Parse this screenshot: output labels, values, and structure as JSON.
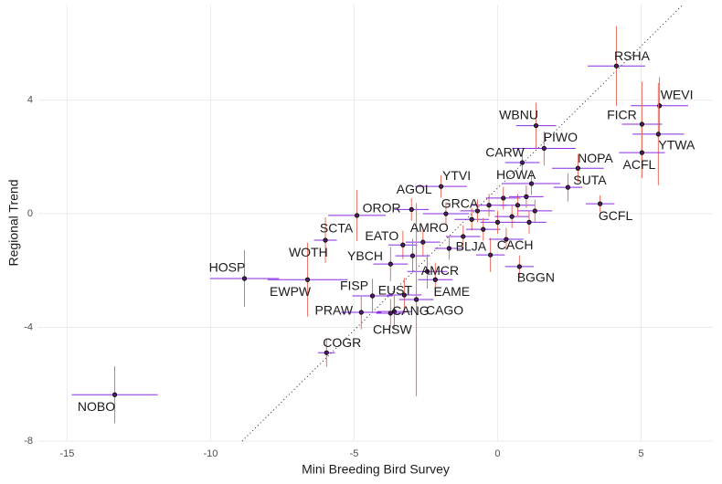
{
  "chart_data": {
    "type": "scatter",
    "x_label": "Mini Breeding Bird Survey",
    "y_label": "Regional Trend",
    "xlim": [
      -16.0,
      7.5
    ],
    "ylim": [
      -8,
      7.36
    ],
    "xticks": [
      -15,
      -10,
      -5,
      0,
      5
    ],
    "yticks": [
      -8,
      -4,
      0,
      4
    ],
    "grid": true,
    "point_color": "#4b1f5e",
    "x_error_color": "#8a2be2",
    "y_error_color": "#e8705f",
    "reference_line": {
      "slope": 1,
      "intercept": 0.9
    },
    "point_labels": [
      "RSHA",
      "WEVI",
      "FICR",
      "YTWA",
      "ACFL",
      "WBNU",
      "PIWO",
      "CARW",
      "NOPA",
      "SUTA",
      "HOWA",
      "GCFL",
      "YTVI",
      "AGOL",
      "OROR",
      "GRCA",
      "EATO",
      "AMRO",
      "SCTA",
      "WOTH",
      "YBCH",
      "BLJA",
      "CACH",
      "HOSP",
      "EWPW",
      "FISP",
      "EUST",
      "AMCR",
      "BGGN",
      "EAME",
      "CAGO",
      "PRAW",
      "CANG",
      "CHSW",
      "COGR",
      "NOBO",
      null,
      null,
      null,
      null,
      null,
      null,
      null,
      null,
      null,
      null,
      null,
      null,
      null
    ],
    "x": [
      4.14,
      5.64,
      5.03,
      5.6,
      5.03,
      1.34,
      1.62,
      0.86,
      2.8,
      2.45,
      1.18,
      3.57,
      -1.97,
      -3.0,
      -4.9,
      -1.8,
      -3.3,
      -2.6,
      -6.0,
      -3.73,
      -2.96,
      -1.69,
      -0.25,
      -8.82,
      -6.62,
      -4.36,
      -3.25,
      -2.45,
      0.76,
      -2.17,
      -2.83,
      -4.75,
      -3.6,
      -3.73,
      -5.96,
      -13.34,
      -0.9,
      -0.5,
      -0.3,
      0,
      0.2,
      0.5,
      0.7,
      1.0,
      1.3,
      -1.2,
      0.3,
      -0.7,
      1.1
    ],
    "values": [
      5.2,
      3.8,
      3.15,
      2.8,
      2.15,
      3.1,
      2.3,
      1.8,
      1.6,
      0.93,
      1.06,
      0.35,
      0.96,
      0.15,
      -0.06,
      0,
      -1.1,
      -1.0,
      -0.93,
      -1.77,
      -1.48,
      -1.22,
      -1.45,
      -2.28,
      -2.32,
      -2.89,
      -2.86,
      -2.03,
      -1.86,
      -2.32,
      -3.02,
      -3.47,
      -3.44,
      -3.5,
      -4.89,
      -6.37,
      -0.2,
      -0.55,
      0.3,
      -0.3,
      0.55,
      -0.1,
      0.3,
      0.6,
      0.1,
      -0.8,
      -0.9,
      0.1,
      -0.3
    ],
    "x_errors": [
      1.0,
      1.0,
      0.7,
      0.9,
      0.8,
      0.7,
      1.1,
      0.6,
      0.9,
      0.5,
      1.0,
      0.5,
      0.9,
      0.6,
      1.0,
      0.8,
      0.5,
      0.6,
      0.4,
      0.6,
      0.6,
      0.5,
      0.5,
      1.2,
      1.4,
      0.7,
      0.6,
      0.7,
      0.5,
      0.6,
      0.6,
      0.7,
      0.6,
      0.5,
      0.3,
      1.5,
      0.6,
      0.6,
      0.6,
      0.6,
      0.6,
      0.6,
      0.6,
      0.6,
      0.6,
      0.6,
      0.6,
      0.6,
      0.6
    ],
    "y_errors": [
      1.4,
      1.0,
      1.5,
      1.8,
      0.9,
      0.8,
      0.6,
      0.3,
      0.5,
      0.5,
      0.4,
      0.3,
      0.4,
      0.4,
      0.9,
      0.4,
      0.5,
      0.5,
      0.8,
      0.6,
      0.6,
      0.4,
      0.6,
      1.0,
      1.3,
      0.6,
      0.6,
      0.6,
      0.4,
      0.6,
      3.4,
      0.6,
      0.6,
      0.5,
      0.5,
      1.0,
      0.4,
      0.4,
      0.4,
      0.4,
      0.4,
      0.4,
      0.4,
      0.4,
      0.4,
      0.4,
      0.4,
      0.4,
      0.4
    ]
  }
}
